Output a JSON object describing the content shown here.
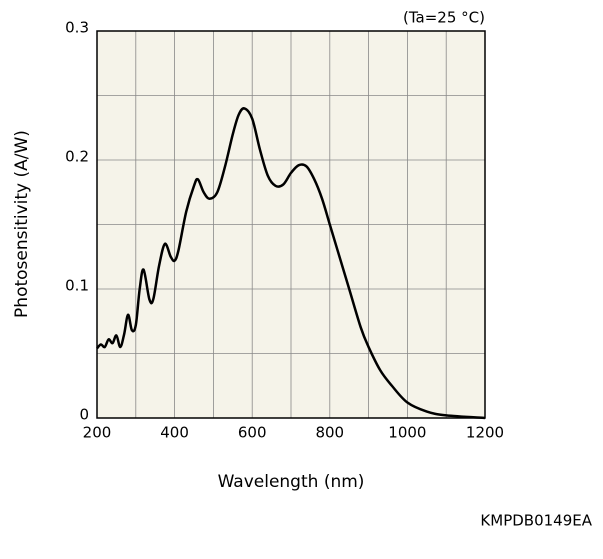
{
  "chart_data": {
    "type": "line",
    "annotation": "(Ta=25 °C)",
    "xlabel": "Wavelength (nm)",
    "ylabel": "Photosensitivity (A/W)",
    "code": "KMPDB0149EA",
    "xlim": [
      200,
      1200
    ],
    "xticks": [
      200,
      400,
      600,
      800,
      1000,
      1200
    ],
    "xminor": [
      300,
      500,
      700,
      900,
      1100
    ],
    "ylim": [
      0,
      0.3
    ],
    "yticks": [
      0,
      0.1,
      0.2,
      0.3
    ],
    "yminor": [
      0.05,
      0.15,
      0.25
    ],
    "grid": true,
    "series": [
      {
        "color": "#000000",
        "x": [
          200,
          210,
          220,
          230,
          240,
          250,
          260,
          270,
          280,
          290,
          300,
          310,
          320,
          335,
          345,
          360,
          375,
          390,
          400,
          410,
          430,
          450,
          460,
          475,
          490,
          510,
          530,
          550,
          565,
          580,
          600,
          620,
          640,
          660,
          680,
          700,
          720,
          740,
          760,
          780,
          800,
          820,
          850,
          880,
          900,
          930,
          960,
          1000,
          1050,
          1100,
          1200
        ],
        "values": [
          0.054,
          0.057,
          0.055,
          0.061,
          0.058,
          0.064,
          0.055,
          0.065,
          0.08,
          0.068,
          0.072,
          0.1,
          0.115,
          0.092,
          0.092,
          0.118,
          0.135,
          0.125,
          0.122,
          0.13,
          0.16,
          0.18,
          0.185,
          0.175,
          0.17,
          0.175,
          0.195,
          0.22,
          0.235,
          0.24,
          0.232,
          0.208,
          0.188,
          0.18,
          0.181,
          0.19,
          0.196,
          0.195,
          0.185,
          0.17,
          0.15,
          0.13,
          0.1,
          0.07,
          0.055,
          0.037,
          0.025,
          0.012,
          0.005,
          0.002,
          0.0
        ]
      }
    ]
  }
}
